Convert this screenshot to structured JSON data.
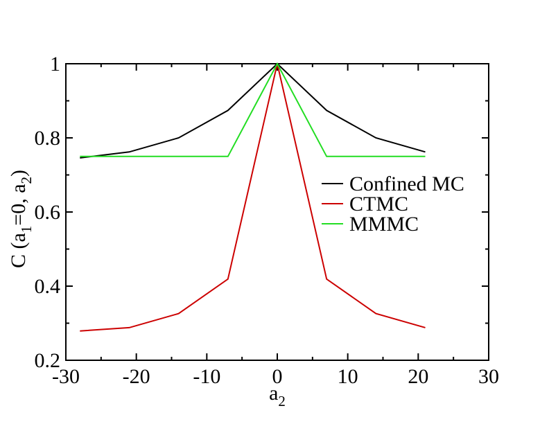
{
  "chart_data": {
    "type": "line",
    "title": "",
    "xlabel": {
      "main": "a",
      "sub": "2"
    },
    "ylabel": {
      "parts": [
        "C (a",
        "1",
        "=0, a",
        "2",
        ")"
      ]
    },
    "xlim": [
      -30,
      30
    ],
    "ylim": [
      0.2,
      1.0
    ],
    "xticks": [
      -30,
      -20,
      -10,
      0,
      10,
      20,
      30
    ],
    "xtick_labels": [
      "-30",
      "-20",
      "-10",
      "0",
      "10",
      "20",
      "30"
    ],
    "yticks": [
      0.2,
      0.4,
      0.6,
      0.8,
      1.0
    ],
    "ytick_labels": [
      "0.2",
      "0.4",
      "0.6",
      "0.8",
      "1"
    ],
    "grid": false,
    "legend_position": "center-right",
    "series": [
      {
        "name": "Confined MC",
        "color": "#000000",
        "x": [
          -28,
          -21,
          -14,
          -7,
          0,
          7,
          14,
          21
        ],
        "y": [
          0.746,
          0.762,
          0.8,
          0.874,
          1.0,
          0.874,
          0.8,
          0.762
        ]
      },
      {
        "name": "CTMC",
        "color": "#cc0000",
        "x": [
          -28,
          -21,
          -14,
          -7,
          0,
          7,
          14,
          21
        ],
        "y": [
          0.279,
          0.288,
          0.326,
          0.419,
          1.0,
          0.419,
          0.326,
          0.288
        ]
      },
      {
        "name": "MMMC",
        "color": "#22dd22",
        "x": [
          -28,
          -21,
          -14,
          -7,
          0,
          7,
          14,
          21
        ],
        "y": [
          0.75,
          0.75,
          0.75,
          0.75,
          1.0,
          0.75,
          0.75,
          0.75
        ]
      }
    ]
  }
}
